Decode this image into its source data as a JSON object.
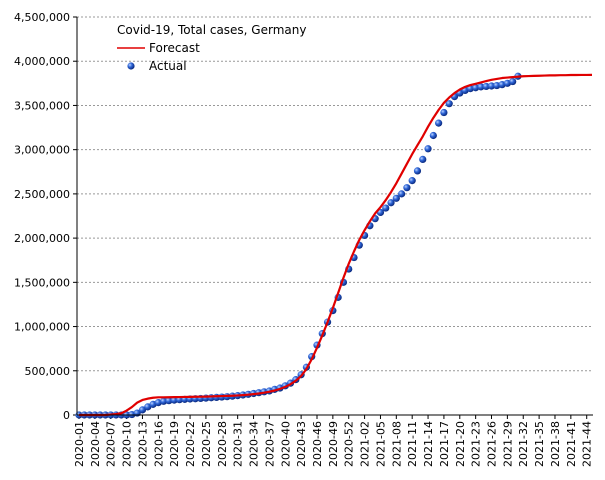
{
  "chart_data": {
    "type": "line",
    "title": "Covid-19, Total cases, Germany",
    "categories": [
      "2020-01",
      null,
      null,
      "2020-04",
      null,
      null,
      "2020-07",
      null,
      null,
      "2020-10",
      null,
      null,
      "2020-13",
      null,
      null,
      "2020-16",
      null,
      null,
      "2020-19",
      null,
      null,
      "2020-22",
      null,
      null,
      "2020-25",
      null,
      null,
      "2020-28",
      null,
      null,
      "2020-31",
      null,
      null,
      "2020-34",
      null,
      null,
      "2020-37",
      null,
      null,
      "2020-40",
      null,
      null,
      "2020-43",
      null,
      null,
      "2020-46",
      null,
      null,
      "2020-49",
      null,
      null,
      "2020-52",
      null,
      null,
      "2021-02",
      null,
      null,
      "2021-05",
      null,
      null,
      "2021-08",
      null,
      null,
      "2021-11",
      null,
      null,
      "2021-14",
      null,
      null,
      "2021-17",
      null,
      null,
      "2021-20",
      null,
      null,
      "2021-23",
      null,
      null,
      "2021-26",
      null,
      null,
      "2021-29",
      null,
      null,
      "2021-32",
      null,
      null,
      "2021-35",
      null,
      null,
      "2021-38",
      null,
      null,
      "2021-41",
      null,
      null,
      "2021-44",
      null
    ],
    "series": [
      {
        "name": "Forecast",
        "color": "#e00000",
        "style": "line",
        "values": [
          0,
          0,
          0,
          0,
          0,
          0,
          5000,
          10000,
          20000,
          50000,
          90000,
          140000,
          170000,
          185000,
          195000,
          200000,
          200000,
          201000,
          202000,
          203000,
          204000,
          205000,
          206000,
          207000,
          208000,
          210000,
          212000,
          214000,
          216000,
          218000,
          221000,
          225000,
          230000,
          236000,
          243000,
          252000,
          263000,
          277000,
          295000,
          318000,
          348000,
          388000,
          440000,
          520000,
          630000,
          760000,
          900000,
          1050000,
          1210000,
          1380000,
          1550000,
          1710000,
          1850000,
          1980000,
          2090000,
          2190000,
          2280000,
          2350000,
          2430000,
          2520000,
          2620000,
          2730000,
          2840000,
          2950000,
          3050000,
          3150000,
          3260000,
          3360000,
          3450000,
          3530000,
          3590000,
          3640000,
          3680000,
          3710000,
          3730000,
          3745000,
          3760000,
          3775000,
          3790000,
          3800000,
          3810000,
          3815000,
          3820000,
          3825000,
          3830000,
          3832000,
          3834000,
          3836000,
          3838000,
          3840000,
          3840000,
          3842000,
          3842000,
          3844000,
          3844000,
          3845000,
          3845000,
          3846000
        ]
      },
      {
        "name": "Actual",
        "color": "#1a4fc0",
        "style": "markers",
        "values": [
          0,
          0,
          0,
          0,
          0,
          0,
          0,
          0,
          0,
          1000,
          5000,
          22000,
          58000,
          92000,
          120000,
          140000,
          155000,
          162000,
          168000,
          173000,
          177000,
          181000,
          184000,
          187000,
          191000,
          195000,
          199000,
          203000,
          207000,
          213000,
          219000,
          226000,
          234000,
          243000,
          252000,
          262000,
          272000,
          290000,
          305000,
          330000,
          360000,
          400000,
          455000,
          540000,
          660000,
          790000,
          920000,
          1050000,
          1180000,
          1330000,
          1500000,
          1650000,
          1780000,
          1920000,
          2030000,
          2140000,
          2220000,
          2290000,
          2340000,
          2400000,
          2450000,
          2500000,
          2570000,
          2650000,
          2760000,
          2890000,
          3010000,
          3160000,
          3300000,
          3420000,
          3520000,
          3600000,
          3640000,
          3670000,
          3690000,
          3700000,
          3710000,
          3715000,
          3720000,
          3725000,
          3735000,
          3750000,
          3770000,
          3830000,
          null,
          null,
          null,
          null,
          null,
          null,
          null,
          null,
          null,
          null,
          null,
          null,
          null,
          null
        ]
      }
    ],
    "ylim": [
      0,
      4500000
    ],
    "yticks": [
      0,
      {
        "value": 500000,
        "label": "500,000"
      },
      {
        "value": 1000000,
        "label": "1,000,000"
      },
      {
        "value": 1500000,
        "label": "1,500,000"
      },
      {
        "value": 2000000,
        "label": "2,000,000"
      },
      {
        "value": 2500000,
        "label": "2,500,000"
      },
      {
        "value": 3000000,
        "label": "3,000,000"
      },
      {
        "value": 3500000,
        "label": "3,500,000"
      },
      {
        "value": 4000000,
        "label": "4,000,000"
      },
      {
        "value": 4500000,
        "label": "4,500,000"
      }
    ],
    "grid": true,
    "legend": "upper left"
  }
}
